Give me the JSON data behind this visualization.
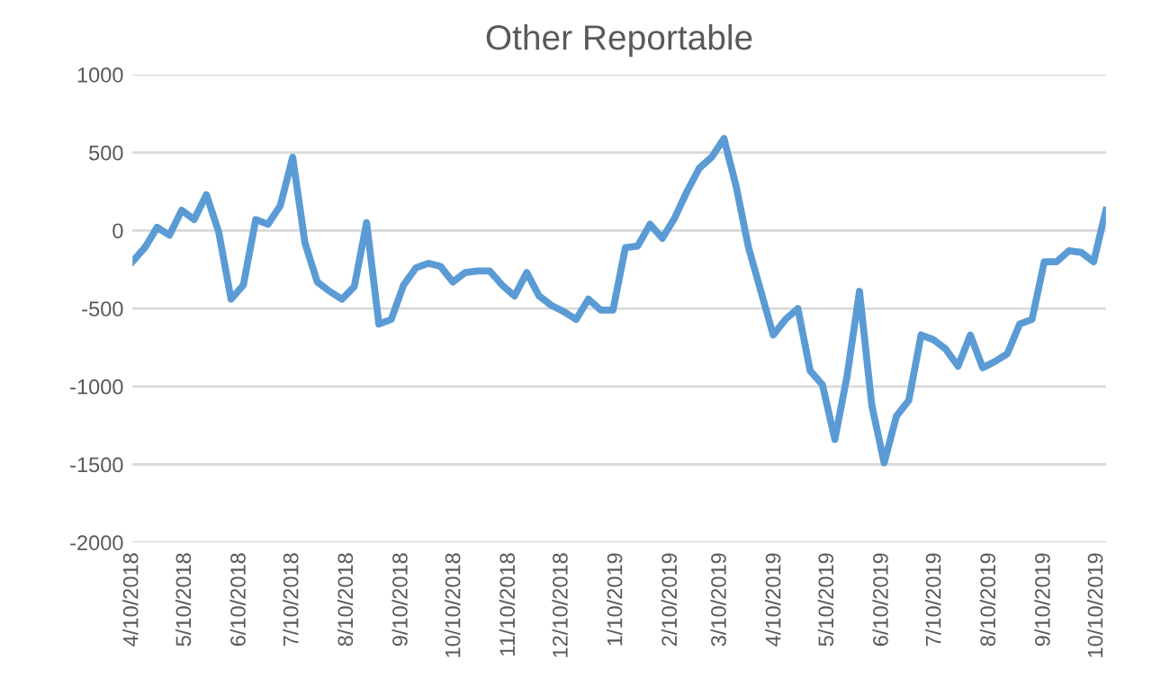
{
  "chart_data": {
    "type": "line",
    "title": "Other Reportable",
    "x": [
      "2018-04-10",
      "2018-04-17",
      "2018-04-24",
      "2018-05-01",
      "2018-05-08",
      "2018-05-15",
      "2018-05-22",
      "2018-05-29",
      "2018-06-05",
      "2018-06-12",
      "2018-06-19",
      "2018-06-26",
      "2018-07-03",
      "2018-07-10",
      "2018-07-17",
      "2018-07-24",
      "2018-07-31",
      "2018-08-07",
      "2018-08-14",
      "2018-08-21",
      "2018-08-28",
      "2018-09-04",
      "2018-09-11",
      "2018-09-18",
      "2018-09-25",
      "2018-10-02",
      "2018-10-09",
      "2018-10-16",
      "2018-10-23",
      "2018-10-30",
      "2018-11-06",
      "2018-11-13",
      "2018-11-20",
      "2018-11-27",
      "2018-12-04",
      "2018-12-11",
      "2018-12-18",
      "2018-12-25",
      "2019-01-01",
      "2019-01-08",
      "2019-01-15",
      "2019-01-22",
      "2019-01-29",
      "2019-02-05",
      "2019-02-12",
      "2019-02-19",
      "2019-02-26",
      "2019-03-05",
      "2019-03-12",
      "2019-03-19",
      "2019-03-26",
      "2019-04-02",
      "2019-04-09",
      "2019-04-16",
      "2019-04-23",
      "2019-04-30",
      "2019-05-07",
      "2019-05-14",
      "2019-05-21",
      "2019-05-28",
      "2019-06-04",
      "2019-06-11",
      "2019-06-18",
      "2019-06-25",
      "2019-07-02",
      "2019-07-09",
      "2019-07-16",
      "2019-07-23",
      "2019-07-30",
      "2019-08-06",
      "2019-08-13",
      "2019-08-20",
      "2019-08-27",
      "2019-09-03",
      "2019-09-10",
      "2019-09-17",
      "2019-09-24",
      "2019-10-01",
      "2019-10-08",
      "2019-10-15"
    ],
    "series": [
      {
        "color": "#5b9bd5",
        "values": [
          -200,
          -110,
          20,
          -30,
          130,
          70,
          230,
          -10,
          -440,
          -350,
          70,
          40,
          160,
          470,
          -80,
          -330,
          -390,
          -440,
          -360,
          50,
          -600,
          -570,
          -350,
          -240,
          -210,
          -230,
          -330,
          -270,
          -260,
          -260,
          -350,
          -420,
          -270,
          -420,
          -480,
          -520,
          -570,
          -440,
          -510,
          -510,
          -110,
          -100,
          40,
          -50,
          80,
          250,
          400,
          470,
          590,
          280,
          -110,
          -390,
          -670,
          -570,
          -500,
          -900,
          -990,
          -1340,
          -930,
          -390,
          -1120,
          -1490,
          -1190,
          -1090,
          -670,
          -700,
          -760,
          -870,
          -670,
          -880,
          -840,
          -790,
          -600,
          -570,
          -200,
          -200,
          -130,
          -140,
          -200,
          130
        ]
      }
    ],
    "xlim": [
      "2018-04-10",
      "2019-10-15"
    ],
    "xticks": [
      {
        "value": "2018-04-10",
        "label": "4/10/2018"
      },
      {
        "value": "2018-05-10",
        "label": "5/10/2018"
      },
      {
        "value": "2018-06-10",
        "label": "6/10/2018"
      },
      {
        "value": "2018-07-10",
        "label": "7/10/2018"
      },
      {
        "value": "2018-08-10",
        "label": "8/10/2018"
      },
      {
        "value": "2018-09-10",
        "label": "9/10/2018"
      },
      {
        "value": "2018-10-10",
        "label": "10/10/2018"
      },
      {
        "value": "2018-11-10",
        "label": "11/10/2018"
      },
      {
        "value": "2018-12-10",
        "label": "12/10/2018"
      },
      {
        "value": "2019-01-10",
        "label": "1/10/2019"
      },
      {
        "value": "2019-02-10",
        "label": "2/10/2019"
      },
      {
        "value": "2019-03-10",
        "label": "3/10/2019"
      },
      {
        "value": "2019-04-10",
        "label": "4/10/2019"
      },
      {
        "value": "2019-05-10",
        "label": "5/10/2019"
      },
      {
        "value": "2019-06-10",
        "label": "6/10/2019"
      },
      {
        "value": "2019-07-10",
        "label": "7/10/2019"
      },
      {
        "value": "2019-08-10",
        "label": "8/10/2019"
      },
      {
        "value": "2019-09-10",
        "label": "9/10/2019"
      },
      {
        "value": "2019-10-10",
        "label": "10/10/2019"
      }
    ],
    "ylim": [
      -2000,
      1000
    ],
    "yticks": [
      1000,
      500,
      0,
      -500,
      -1000,
      -1500,
      -2000
    ],
    "grid": "y",
    "marker": "none",
    "line_style": "solid"
  }
}
